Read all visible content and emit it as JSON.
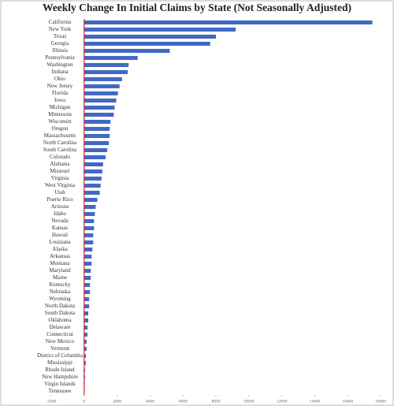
{
  "chart_data": {
    "type": "hbar",
    "title": "Weekly Change In Initial Claims by State (Not Seasonally Adjusted)",
    "categories": [
      "California",
      "New York",
      "Texas",
      "Georgia",
      "Illinois",
      "Pennsylvania",
      "Washington",
      "Indiana",
      "Ohio",
      "New Jersey",
      "Florida",
      "Iowa",
      "Michigan",
      "Minnesota",
      "Wisconsin",
      "Oregon",
      "Massachusetts",
      "North Carolina",
      "South Carolina",
      "Colorado",
      "Alabama",
      "Missouri",
      "Virginia",
      "West Virginia",
      "Utah",
      "Puerto Rico",
      "Arizona",
      "Idaho",
      "Nevada",
      "Kansas",
      "Hawaii",
      "Louisiana",
      "Alaska",
      "Arkansas",
      "Montana",
      "Maryland",
      "Maine",
      "Kentucky",
      "Nebraska",
      "Wyoming",
      "North Dakota",
      "South Dakota",
      "Oklahoma",
      "Delaware",
      "Connecticut",
      "New Mexico",
      "Vermont",
      "District of Columbia",
      "Mississippi",
      "Rhode Island",
      "New Hampshire",
      "Virgin Islands",
      "Tennessee"
    ],
    "values": [
      17500,
      9200,
      8000,
      7650,
      5200,
      3250,
      2700,
      2650,
      2300,
      2150,
      2050,
      1950,
      1850,
      1800,
      1600,
      1550,
      1550,
      1500,
      1400,
      1300,
      1150,
      1100,
      1050,
      1000,
      950,
      800,
      700,
      650,
      600,
      600,
      550,
      550,
      500,
      450,
      450,
      400,
      400,
      350,
      350,
      300,
      300,
      250,
      250,
      200,
      200,
      150,
      150,
      100,
      100,
      50,
      50,
      30,
      20
    ],
    "color": "#4169c4",
    "zero_line_color": "#d62020",
    "xlim": [
      -2000,
      18000
    ],
    "xticks": [
      -2000,
      0,
      2000,
      4000,
      6000,
      8000,
      10000,
      12000,
      14000,
      16000,
      18000
    ],
    "grid": false
  }
}
